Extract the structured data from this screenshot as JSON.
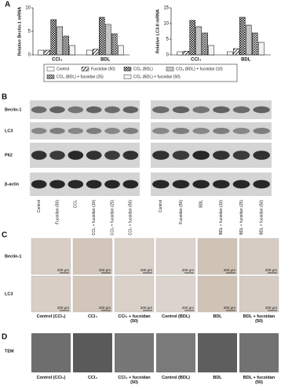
{
  "panels": {
    "a": "A",
    "b": "B",
    "c": "C",
    "d": "D"
  },
  "chart_data": [
    {
      "type": "bar",
      "ylabel": "Relative Beclin-1 mRNA",
      "categories": [
        "CCl₄",
        "BDL"
      ],
      "ylim": [
        0,
        10
      ],
      "yticks": [
        0,
        5,
        10
      ],
      "series": [
        {
          "name": "Control",
          "pattern": "none",
          "values": [
            1,
            1
          ]
        },
        {
          "name": "Fucoidan (50)",
          "pattern": "hatch",
          "values": [
            1,
            1.2
          ]
        },
        {
          "name": "CCl₄ (BDL)",
          "pattern": "check",
          "values": [
            7.5,
            8
          ]
        },
        {
          "name": "CCl₄ (BDL) + fucoidan (10)",
          "pattern": "hline",
          "values": [
            6,
            6.5
          ]
        },
        {
          "name": "CCl₄ (BDL) + fucoidan (25)",
          "pattern": "cross",
          "values": [
            4,
            4.5
          ]
        },
        {
          "name": "CCl₄ (BDL) + fucoidan (50)",
          "pattern": "dots",
          "values": [
            2,
            2
          ]
        }
      ]
    },
    {
      "type": "bar",
      "ylabel": "Relative LC3-II mRNA",
      "categories": [
        "CCl₄",
        "BDL"
      ],
      "ylim": [
        0,
        15
      ],
      "yticks": [
        0,
        5,
        10,
        15
      ],
      "series": [
        {
          "pattern": "none",
          "values": [
            1,
            1
          ]
        },
        {
          "pattern": "hatch",
          "values": [
            1.2,
            2
          ]
        },
        {
          "pattern": "check",
          "values": [
            11,
            12
          ]
        },
        {
          "pattern": "hline",
          "values": [
            9,
            9.5
          ]
        },
        {
          "pattern": "cross",
          "values": [
            7,
            7
          ]
        },
        {
          "pattern": "dots",
          "values": [
            3,
            4
          ]
        }
      ]
    }
  ],
  "blot": {
    "rows": [
      "Beclin-1",
      "LC3",
      "P62",
      "β-actin"
    ],
    "left_lanes": [
      "Control",
      "Fucoidan (50)",
      "CCl₄",
      "CCl₄ + fucoidan (10)",
      "CCl₄ + fucoidan (25)",
      "CCl₄ + fucoidan (50)"
    ],
    "right_lanes": [
      "Control",
      "Fucoidan (50)",
      "BDL",
      "BDL + fucoidan (10)",
      "BDL + fucoidan (25)",
      "BDL + fucoidan (50)"
    ]
  },
  "histology": {
    "rows": [
      "Beclin-1",
      "LC3"
    ],
    "scale": "200 μm",
    "columns": [
      "Control (CCl₄)",
      "CCl₄",
      "CCl₄ + fucoidan (50)",
      "Control (BDL)",
      "BDL",
      "BDL + fucoidan (50)"
    ]
  },
  "tem": {
    "row": "TEM"
  }
}
